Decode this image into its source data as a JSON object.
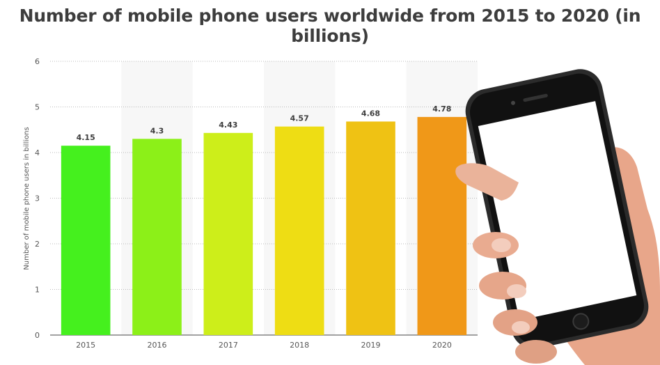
{
  "chart_data": {
    "type": "bar",
    "title": "Number of mobile phone users worldwide from 2015 to 2020 (in billions)",
    "ylabel": "Number of mobile phone users in billions",
    "xlabel": "",
    "categories": [
      "2015",
      "2016",
      "2017",
      "2018",
      "2019",
      "2020"
    ],
    "values": [
      4.15,
      4.3,
      4.43,
      4.57,
      4.68,
      4.78
    ],
    "data_labels": [
      "4.15",
      "4.3",
      "4.43",
      "4.57",
      "4.68",
      "4.78"
    ],
    "ylim": [
      0,
      6
    ],
    "yticks": [
      "0",
      "1",
      "2",
      "3",
      "4",
      "5",
      "6"
    ],
    "grid": true,
    "bar_colors": [
      "#45f01e",
      "#8cf018",
      "#cdee1a",
      "#eedd14",
      "#efc214",
      "#f09818"
    ],
    "decoration": "hand-holding-smartphone"
  }
}
